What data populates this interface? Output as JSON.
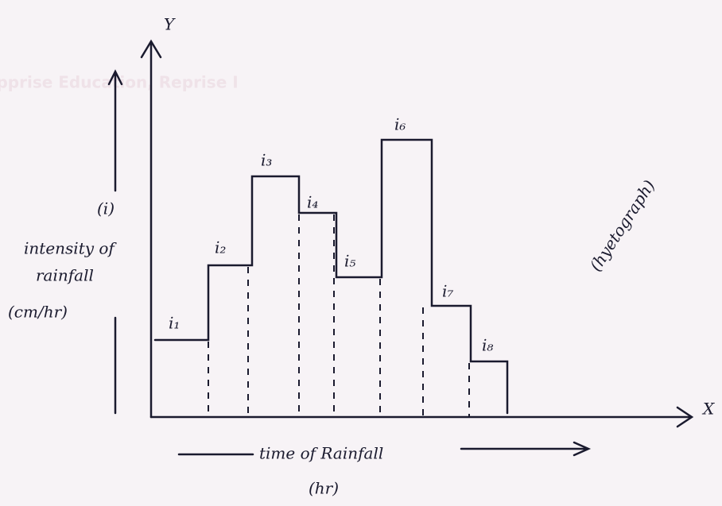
{
  "watermark": "Apprise Education, Reprise I",
  "axes": {
    "y_symbol": "Y",
    "x_symbol": "X"
  },
  "y_label": {
    "symbol": "(i)",
    "lines": [
      "intensity of",
      "rainfall",
      "(cm/hr)"
    ]
  },
  "x_label": {
    "text": "time of Rainfall",
    "unit": "(hr)"
  },
  "bars": {
    "labels": [
      "i₁",
      "i₂",
      "i₃",
      "i₄",
      "i₅",
      "i₆",
      "i₇",
      "i₈"
    ]
  },
  "annotation": "(hyetograph)"
}
